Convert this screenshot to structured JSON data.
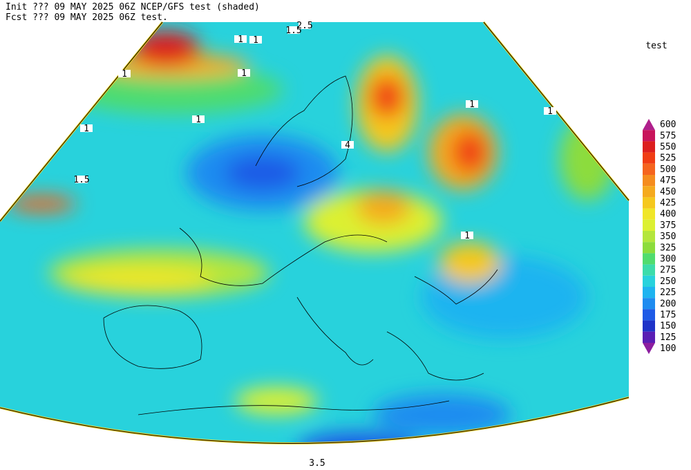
{
  "header": {
    "line1": "Init  ??? 09 MAY 2025 06Z  NCEP/GFS test (shaded)",
    "line2": "Fcst ??? 09 MAY 2025 06Z  test."
  },
  "legend": {
    "title": "test",
    "levels": [
      {
        "value": 600,
        "color": "#b0208c"
      },
      {
        "value": 575,
        "color": "#c8145a"
      },
      {
        "value": 550,
        "color": "#dc1e1e"
      },
      {
        "value": 525,
        "color": "#f03c14"
      },
      {
        "value": 500,
        "color": "#f5641e"
      },
      {
        "value": 475,
        "color": "#f58c1e"
      },
      {
        "value": 450,
        "color": "#f5aa1e"
      },
      {
        "value": 425,
        "color": "#f5c81e"
      },
      {
        "value": 400,
        "color": "#f0e628"
      },
      {
        "value": 375,
        "color": "#dcf032"
      },
      {
        "value": 350,
        "color": "#b4e63c"
      },
      {
        "value": 325,
        "color": "#8cdc3c"
      },
      {
        "value": 300,
        "color": "#50dc6e"
      },
      {
        "value": 275,
        "color": "#3cdcaa"
      },
      {
        "value": 250,
        "color": "#28d2dc"
      },
      {
        "value": 225,
        "color": "#1eb4f0"
      },
      {
        "value": 200,
        "color": "#1e8cf0"
      },
      {
        "value": 175,
        "color": "#1e5ae6"
      },
      {
        "value": 150,
        "color": "#1e32c8"
      },
      {
        "value": 125,
        "color": "#5a1eb4"
      },
      {
        "value": 100,
        "color": "#8c1ea0"
      }
    ]
  },
  "contour_labels": [
    "1.5",
    "2.5",
    "1",
    "1",
    "1",
    "1",
    "1.5",
    "4",
    "1",
    "1",
    "1",
    "1",
    "1",
    "3.5"
  ]
}
